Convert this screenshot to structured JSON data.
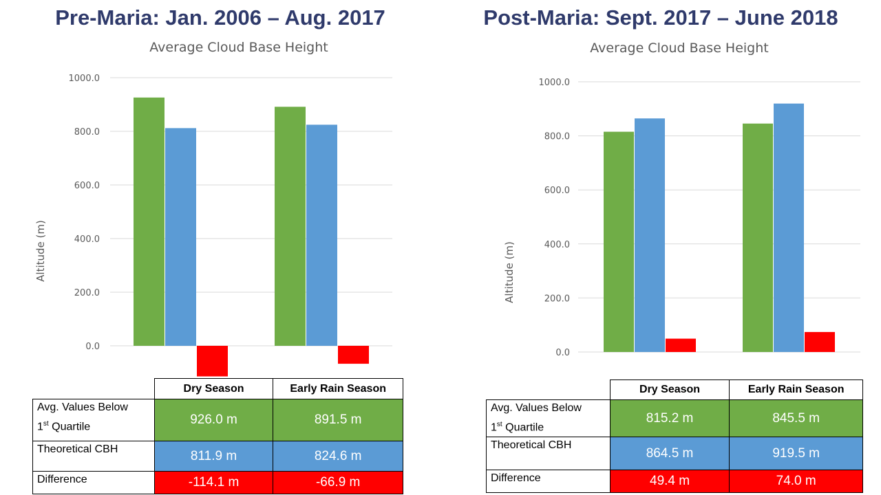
{
  "left": {
    "title": "Pre-Maria: Jan. 2006 – Aug. 2017",
    "chart_title": "Average Cloud Base Height",
    "ylabel": "Altitude (m)",
    "table": {
      "headers": [
        "Dry Season",
        "Early Rain Season"
      ],
      "rows": [
        {
          "label_main": "Avg. Values Below",
          "label_num": "1",
          "label_sup": "st",
          "label_rest": " Quartile",
          "values": [
            "926.0 m",
            "891.5 m"
          ]
        },
        {
          "label": "Theoretical  CBH",
          "values": [
            "811.9 m",
            "824.6 m"
          ]
        },
        {
          "label": "Difference",
          "values": [
            "-114.1 m",
            "-66.9 m"
          ]
        }
      ]
    }
  },
  "right": {
    "title": "Post-Maria: Sept. 2017 – June 2018",
    "chart_title": "Average Cloud Base Height",
    "ylabel": "Altitude (m)",
    "table": {
      "headers": [
        "Dry Season",
        "Early Rain Season"
      ],
      "rows": [
        {
          "label_main": "Avg. Values Below",
          "label_num": "1",
          "label_sup": "st",
          "label_rest": " Quartile",
          "values": [
            "815.2 m",
            "845.5 m"
          ]
        },
        {
          "label": "Theoretical  CBH",
          "values": [
            "864.5 m",
            "919.5 m"
          ]
        },
        {
          "label": "Difference",
          "values": [
            "49.4 m",
            "74.0 m"
          ]
        }
      ]
    }
  },
  "colors": {
    "avg_below_q1": "#70ad47",
    "theoretical_cbh": "#5b9bd5",
    "difference": "#ff0000"
  },
  "chart_data": [
    {
      "type": "bar",
      "title": "Average Cloud Base Height",
      "ylabel": "Altitude (m)",
      "categories": [
        "Dry Season",
        "Early Rain Season"
      ],
      "ylim": [
        -114.1,
        1000
      ],
      "yticks": [
        "0.0",
        "200.0",
        "400.0",
        "600.0",
        "800.0",
        "1000.0"
      ],
      "grid": true,
      "series": [
        {
          "values": [
            926.0,
            891.5
          ],
          "color": "#70ad47"
        },
        {
          "values": [
            811.9,
            824.6
          ],
          "color": "#5b9bd5"
        },
        {
          "values": [
            -114.1,
            -66.9
          ],
          "color": "#ff0000"
        }
      ]
    },
    {
      "type": "bar",
      "title": "Average Cloud Base Height",
      "ylabel": "Altitude (m)",
      "categories": [
        "Dry Season",
        "Early Rain Season"
      ],
      "ylim": [
        0,
        1000
      ],
      "yticks": [
        "0.0",
        "200.0",
        "400.0",
        "600.0",
        "800.0",
        "1000.0"
      ],
      "grid": true,
      "series": [
        {
          "values": [
            815.2,
            845.5
          ],
          "color": "#70ad47"
        },
        {
          "values": [
            864.5,
            919.5
          ],
          "color": "#5b9bd5"
        },
        {
          "values": [
            49.4,
            74.0
          ],
          "color": "#ff0000"
        }
      ]
    }
  ]
}
